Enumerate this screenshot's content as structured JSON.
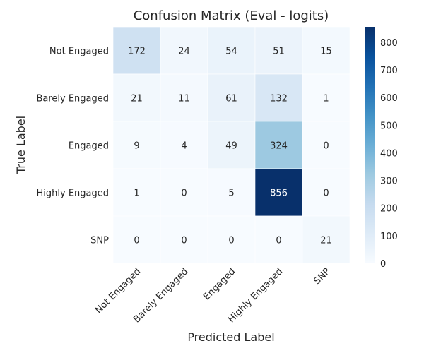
{
  "chart_data": {
    "type": "heatmap",
    "title": "Confusion Matrix (Eval - logits)",
    "xlabel": "Predicted Label",
    "ylabel": "True Label",
    "x_categories": [
      "Not Engaged",
      "Barely Engaged",
      "Engaged",
      "Highly Engaged",
      "SNP"
    ],
    "y_categories": [
      "Not Engaged",
      "Barely Engaged",
      "Engaged",
      "Highly Engaged",
      "SNP"
    ],
    "values": [
      [
        172,
        24,
        54,
        51,
        15
      ],
      [
        21,
        11,
        61,
        132,
        1
      ],
      [
        9,
        4,
        49,
        324,
        0
      ],
      [
        1,
        0,
        5,
        856,
        0
      ],
      [
        0,
        0,
        0,
        0,
        21
      ]
    ],
    "colorbar": {
      "range": [
        0,
        856
      ],
      "ticks": [
        "0",
        "100",
        "200",
        "300",
        "400",
        "500",
        "600",
        "700",
        "800"
      ],
      "colormap": "Blues"
    }
  }
}
